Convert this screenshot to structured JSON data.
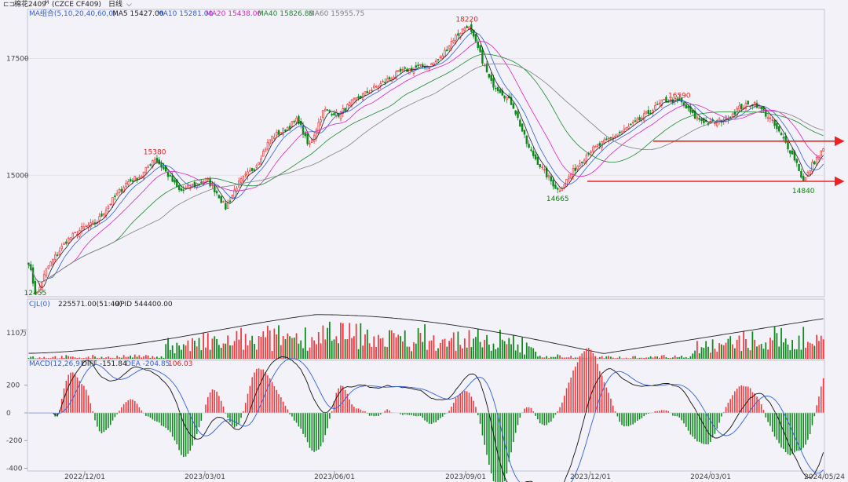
{
  "window": {
    "title_icon": "candlestick-icon",
    "instrument": "棉花2409",
    "instrument_sup": "M",
    "code": "(CZCE CF409)",
    "period": "日线"
  },
  "colors": {
    "up": "#f0393c",
    "down": "#0a8a1a",
    "ma5": "#222222",
    "ma10": "#3060d8",
    "ma20": "#e020c0",
    "ma40": "#1a8a2a",
    "ma60": "#808080",
    "price_label_high": "#e02020",
    "price_label_low": "#108010",
    "arrow": "#ee2222",
    "background": "#f3f2f8"
  },
  "chart_data": [
    {
      "type": "candlestick",
      "legend": {
        "title": "MA组合(5,10,20,40,60,0)",
        "items": [
          {
            "name": "MA5",
            "value": "15427.00"
          },
          {
            "name": "MA10",
            "value": "15281.00"
          },
          {
            "name": "MA20",
            "value": "15438.00"
          },
          {
            "name": "MA40",
            "value": "15826.88"
          },
          {
            "name": "MA60",
            "value": "15955.75"
          }
        ]
      },
      "y_ticks": [
        "17500",
        "15000"
      ],
      "ylim": [
        12400,
        18550
      ],
      "x_ticks": [
        "2022/12/01",
        "2023/03/01",
        "2023/06/01",
        "2023/09/01",
        "2023/12/01",
        "2024/03/01",
        "2024/05/24"
      ],
      "bars_count": 360,
      "close_path": [
        [
          0,
          13150
        ],
        [
          5,
          12400
        ],
        [
          12,
          13000
        ],
        [
          25,
          13600
        ],
        [
          35,
          13850
        ],
        [
          45,
          14000
        ],
        [
          55,
          14450
        ],
        [
          65,
          14850
        ],
        [
          75,
          15000
        ],
        [
          83,
          15380
        ],
        [
          90,
          15100
        ],
        [
          100,
          14650
        ],
        [
          110,
          14800
        ],
        [
          118,
          14900
        ],
        [
          125,
          14600
        ],
        [
          130,
          14300
        ],
        [
          138,
          14800
        ],
        [
          150,
          15200
        ],
        [
          160,
          15800
        ],
        [
          170,
          16000
        ],
        [
          178,
          16200
        ],
        [
          185,
          15600
        ],
        [
          195,
          16400
        ],
        [
          205,
          16300
        ],
        [
          215,
          16600
        ],
        [
          225,
          16800
        ],
        [
          235,
          17000
        ],
        [
          245,
          17200
        ],
        [
          255,
          17300
        ],
        [
          265,
          17350
        ],
        [
          272,
          17500
        ],
        [
          280,
          17900
        ],
        [
          290,
          18220
        ],
        [
          297,
          17700
        ],
        [
          305,
          17000
        ],
        [
          312,
          16800
        ],
        [
          320,
          16500
        ],
        [
          330,
          15600
        ],
        [
          340,
          15100
        ],
        [
          350,
          14665
        ],
        [
          360,
          15100
        ],
        [
          370,
          15500
        ],
        [
          380,
          15700
        ],
        [
          390,
          15900
        ],
        [
          400,
          16100
        ],
        [
          410,
          16350
        ],
        [
          420,
          16600
        ],
        [
          430,
          16590
        ],
        [
          440,
          16250
        ],
        [
          450,
          16100
        ],
        [
          460,
          16200
        ],
        [
          470,
          16450
        ],
        [
          480,
          16550
        ],
        [
          490,
          16200
        ],
        [
          500,
          15700
        ],
        [
          507,
          15300
        ],
        [
          512,
          14840
        ],
        [
          518,
          15250
        ],
        [
          525,
          15550
        ]
      ],
      "price_labels": [
        {
          "text": "18220",
          "kind": "high"
        },
        {
          "text": "16590",
          "kind": "high"
        },
        {
          "text": "15380",
          "kind": "high"
        },
        {
          "text": "14665",
          "kind": "low"
        },
        {
          "text": "14840",
          "kind": "low"
        },
        {
          "text": "12455",
          "kind": "low"
        }
      ],
      "support_arrows": [
        15730,
        14870
      ]
    },
    {
      "type": "bar+line",
      "legend": {
        "title": "CJL(0)",
        "items": [
          {
            "name": "",
            "value": "225571.00(51:49)"
          },
          {
            "name": "OPID",
            "value": "544400.00"
          }
        ]
      },
      "y_ticks": [
        "110万"
      ]
    },
    {
      "type": "macd",
      "legend": {
        "title": "MACD(12,26,9)",
        "items": [
          {
            "name": "DIFF",
            "value": "-151.84"
          },
          {
            "name": "DEA",
            "value": "-204.85"
          },
          {
            "name": "",
            "value": "106.03"
          }
        ]
      },
      "y_ticks": [
        "200",
        "0",
        "-200",
        "-400"
      ],
      "ylim": [
        -420,
        380
      ]
    }
  ]
}
